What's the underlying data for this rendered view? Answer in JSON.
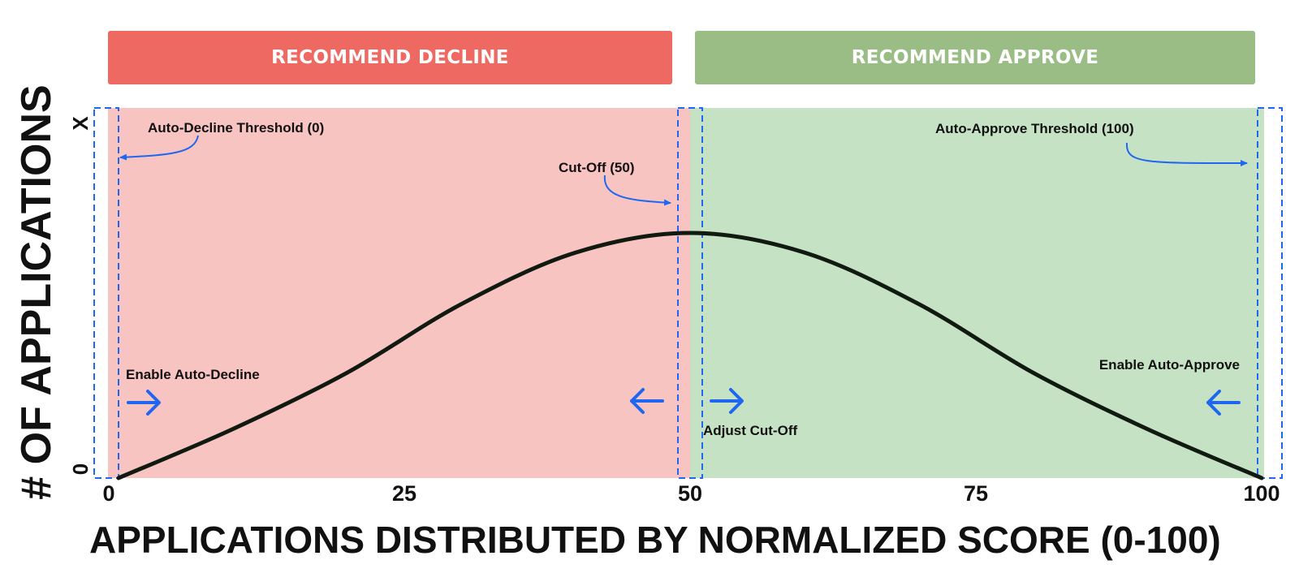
{
  "banners": {
    "decline": "RECOMMEND DECLINE",
    "approve": "RECOMMEND APPROVE"
  },
  "axes": {
    "ylabel": "# OF APPLICATIONS",
    "y_top_label": "X",
    "y_zero_label": "0",
    "xlabel": "APPLICATIONS DISTRIBUTED BY NORMALIZED SCORE (0-100)",
    "x_ticks": [
      "0",
      "25",
      "50",
      "75",
      "100"
    ]
  },
  "annotations": {
    "auto_decline_threshold": "Auto-Decline Threshold (0)",
    "cut_off": "Cut-Off (50)",
    "auto_approve_threshold": "Auto-Approve Threshold  (100)",
    "enable_auto_decline": "Enable Auto-Decline",
    "adjust_cut_off": "Adjust Cut-Off",
    "enable_auto_approve": "Enable Auto-Approve"
  },
  "colors": {
    "decline_banner": "#ef6963",
    "approve_banner": "#99bd85",
    "decline_region": "#f8c4c2",
    "approve_region": "#c6e2c4",
    "marker_blue": "#1f66f0",
    "curve": "#111a11"
  },
  "chart_data": {
    "type": "area",
    "x_range": [
      0,
      100
    ],
    "tick_values": [
      0,
      25,
      50,
      75,
      100
    ],
    "regions": [
      {
        "label": "RECOMMEND DECLINE",
        "from": 0,
        "to": 50
      },
      {
        "label": "RECOMMEND APPROVE",
        "from": 50,
        "to": 100
      }
    ],
    "thresholds": [
      {
        "label": "Auto-Decline Threshold (0)",
        "x": 0
      },
      {
        "label": "Cut-Off (50)",
        "x": 50
      },
      {
        "label": "Auto-Approve Threshold  (100)",
        "x": 100
      }
    ],
    "curve": {
      "x": [
        0,
        10,
        20,
        30,
        40,
        50,
        60,
        70,
        80,
        90,
        100
      ],
      "y": [
        0,
        0.2,
        0.43,
        0.71,
        0.92,
        1.0,
        0.92,
        0.71,
        0.43,
        0.2,
        0
      ]
    }
  }
}
